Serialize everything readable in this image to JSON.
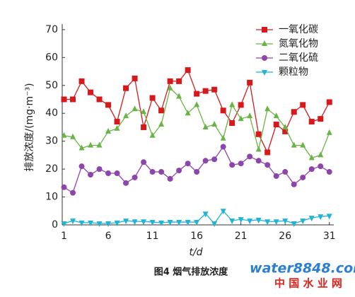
{
  "chart_data": {
    "type": "line",
    "x_label": "t/d",
    "y_label": "排放浓度/(mg·m⁻³)",
    "caption": "图4   烟气排放浓度",
    "watermark": "water8848.com",
    "watermark_sub": "中 国 水 业 网",
    "x": [
      1,
      2,
      3,
      4,
      5,
      6,
      7,
      8,
      9,
      10,
      11,
      12,
      13,
      14,
      15,
      16,
      17,
      18,
      19,
      20,
      21,
      22,
      23,
      24,
      25,
      26,
      27,
      28,
      29,
      30,
      31
    ],
    "xlim": [
      0.8,
      31.5
    ],
    "xticks": [
      1,
      6,
      11,
      16,
      21,
      26,
      31
    ],
    "ylim": [
      0,
      72
    ],
    "yticks": [
      0,
      10,
      20,
      30,
      40,
      50,
      60,
      70
    ],
    "legend_position": "upper right",
    "series": [
      {
        "name": "一氧化碳",
        "color": "#d7191c",
        "marker": "square",
        "values": [
          45,
          45,
          51.5,
          47.5,
          45,
          43,
          37,
          49,
          52.5,
          35,
          45.5,
          41,
          51.5,
          51.5,
          55.5,
          47,
          48,
          48.5,
          41,
          36.5,
          43,
          51,
          32.5,
          26,
          36,
          33.5,
          40.5,
          43,
          37,
          38,
          44
        ]
      },
      {
        "name": "氮氧化物",
        "color": "#6ab446",
        "marker": "triangle-up",
        "values": [
          32,
          31.5,
          27.5,
          28.5,
          28.5,
          33.5,
          34.5,
          39,
          41.5,
          40.5,
          32,
          36,
          49,
          46,
          40,
          43,
          35,
          36,
          31,
          43,
          38,
          39,
          27,
          41.5,
          39,
          35,
          28.5,
          28.5,
          24,
          25,
          33
        ]
      },
      {
        "name": "二氧化硫",
        "color": "#8e44ad",
        "marker": "circle",
        "values": [
          13.5,
          11.5,
          21,
          18,
          20,
          18.5,
          18.5,
          15,
          17,
          22.5,
          19,
          19,
          16.5,
          19.5,
          22,
          19,
          23,
          23.5,
          28,
          21.5,
          22,
          24.5,
          23,
          21.5,
          17.5,
          19,
          14.5,
          17,
          20,
          21,
          19
        ]
      },
      {
        "name": "颗粒物",
        "color": "#1fb4d8",
        "marker": "triangle-down",
        "values": [
          0.5,
          1.5,
          0.8,
          0.8,
          0.5,
          0.5,
          0.8,
          1.5,
          1.2,
          1.2,
          1,
          0.8,
          1,
          1,
          1,
          1,
          4,
          0.5,
          5,
          1.5,
          2,
          1.5,
          1.8,
          1.2,
          1.2,
          1.5,
          0.5,
          1.5,
          2.5,
          3,
          3.2
        ]
      }
    ]
  }
}
